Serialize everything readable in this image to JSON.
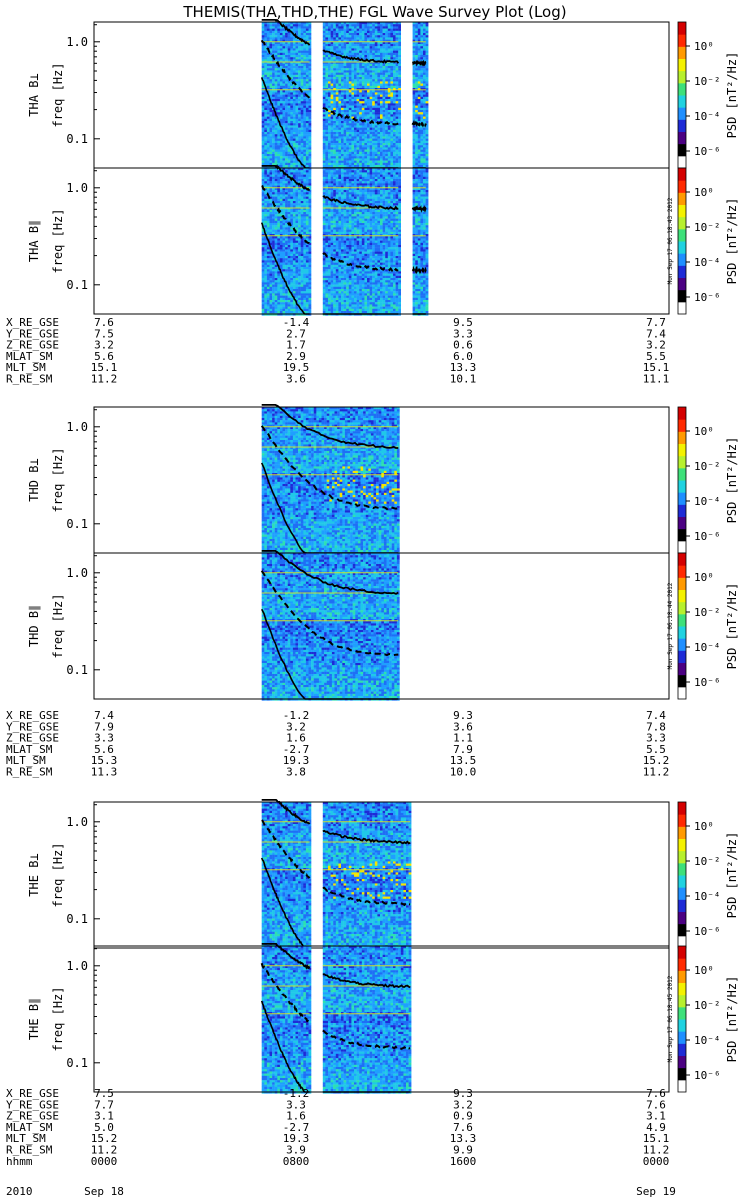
{
  "title": "THEMIS(THA,THD,THE) FGL Wave Survey Plot (Log)",
  "colorbar": {
    "label": "PSD [nT²/Hz]",
    "tick_labels": [
      "10⁰",
      "10⁻²",
      "10⁻⁴",
      "10⁻⁶"
    ],
    "colors": [
      "#ffffff",
      "#000000",
      "#4b0082",
      "#1e2bd6",
      "#1f8fff",
      "#20d2e0",
      "#3ee07a",
      "#b7f02e",
      "#f4f100",
      "#ff9a00",
      "#ff2a00",
      "#d40000"
    ],
    "stamps": [
      "Mon Sep 17 06:18:43 2012",
      "Mon Sep 17 06:18:44 2012",
      "Mon Sep 17 06:18:45 2012"
    ]
  },
  "chart_data": {
    "type": "heatmap",
    "x_range_hours": [
      0,
      24
    ],
    "freq_range_hz": [
      0.05,
      1.6
    ],
    "y_scale": "log",
    "ytick_labels": [
      "1.0",
      "0.1"
    ],
    "ylabel": "freq [Hz]",
    "panels": [
      {
        "probe": "THA",
        "component": "THA B⊥",
        "data_intervals_hours": [
          [
            7.0,
            9.0
          ],
          [
            9.55,
            12.7
          ],
          [
            13.3,
            13.85
          ]
        ],
        "curve_ends_hours": [
          [
            8.95,
            12.7
          ],
          [
            13.3,
            13.85
          ]
        ]
      },
      {
        "probe": "THA",
        "component": "THA B∥",
        "data_intervals_hours": [
          [
            7.0,
            9.0
          ],
          [
            9.55,
            12.7
          ],
          [
            13.3,
            13.85
          ]
        ],
        "curve_ends_hours": [
          [
            8.95,
            12.7
          ],
          [
            13.3,
            13.85
          ]
        ]
      },
      {
        "probe": "THD",
        "component": "THD B⊥",
        "data_intervals_hours": [
          [
            7.0,
            12.7
          ]
        ],
        "curve_ends_hours": [
          [
            12.7
          ]
        ]
      },
      {
        "probe": "THD",
        "component": "THD B∥",
        "data_intervals_hours": [
          [
            7.0,
            12.7
          ]
        ],
        "curve_ends_hours": [
          [
            12.7
          ]
        ]
      },
      {
        "probe": "THE",
        "component": "THE B⊥",
        "data_intervals_hours": [
          [
            7.0,
            9.0
          ],
          [
            9.55,
            13.2
          ]
        ],
        "curve_ends_hours": [
          [
            8.95,
            13.2
          ]
        ]
      },
      {
        "probe": "THE",
        "component": "THE B∥",
        "data_intervals_hours": [
          [
            7.0,
            9.0
          ],
          [
            9.55,
            13.2
          ]
        ],
        "curve_ends_hours": [
          [
            8.95,
            13.2
          ]
        ]
      }
    ],
    "ephemeris": [
      {
        "probe": "THA",
        "rows": [
          {
            "label": "X_RE_GSE",
            "values": [
              "7.6",
              "-1.4",
              "9.5",
              "7.7"
            ]
          },
          {
            "label": "Y_RE_GSE",
            "values": [
              "7.5",
              "2.7",
              "3.3",
              "7.4"
            ]
          },
          {
            "label": "Z_RE_GSE",
            "values": [
              "3.2",
              "1.7",
              "0.6",
              "3.2"
            ]
          },
          {
            "label": "MLAT_SM",
            "values": [
              "5.6",
              "2.9",
              "6.0",
              "5.5"
            ]
          },
          {
            "label": "MLT_SM",
            "values": [
              "15.1",
              "19.5",
              "13.3",
              "15.1"
            ]
          },
          {
            "label": "R_RE_SM",
            "values": [
              "11.2",
              "3.6",
              "10.1",
              "11.1"
            ]
          }
        ]
      },
      {
        "probe": "THD",
        "rows": [
          {
            "label": "X_RE_GSE",
            "values": [
              "7.4",
              "-1.2",
              "9.3",
              "7.4"
            ]
          },
          {
            "label": "Y_RE_GSE",
            "values": [
              "7.9",
              "3.2",
              "3.6",
              "7.8"
            ]
          },
          {
            "label": "Z_RE_GSE",
            "values": [
              "3.3",
              "1.6",
              "1.1",
              "3.3"
            ]
          },
          {
            "label": "MLAT_SM",
            "values": [
              "5.6",
              "-2.7",
              "7.9",
              "5.5"
            ]
          },
          {
            "label": "MLT_SM",
            "values": [
              "15.3",
              "19.3",
              "13.5",
              "15.2"
            ]
          },
          {
            "label": "R_RE_SM",
            "values": [
              "11.3",
              "3.8",
              "10.0",
              "11.2"
            ]
          }
        ]
      },
      {
        "probe": "THE",
        "rows": [
          {
            "label": "X_RE_GSE",
            "values": [
              "7.5",
              "-1.2",
              "9.3",
              "7.6"
            ]
          },
          {
            "label": "Y_RE_GSE",
            "values": [
              "7.7",
              "3.3",
              "3.2",
              "7.6"
            ]
          },
          {
            "label": "Z_RE_GSE",
            "values": [
              "3.1",
              "1.6",
              "0.9",
              "3.1"
            ]
          },
          {
            "label": "MLAT_SM",
            "values": [
              "5.0",
              "-2.7",
              "7.6",
              "4.9"
            ]
          },
          {
            "label": "MLT_SM",
            "values": [
              "15.2",
              "19.3",
              "13.3",
              "15.1"
            ]
          },
          {
            "label": "R_RE_SM",
            "values": [
              "11.2",
              "3.9",
              "9.9",
              "11.2"
            ]
          },
          {
            "label": "hhmm",
            "values": [
              "0000",
              "0800",
              "1600",
              "0000"
            ]
          }
        ]
      }
    ],
    "time_labels": {
      "year": "2010",
      "start_date": "Sep 18",
      "end_date": "Sep 19"
    }
  }
}
